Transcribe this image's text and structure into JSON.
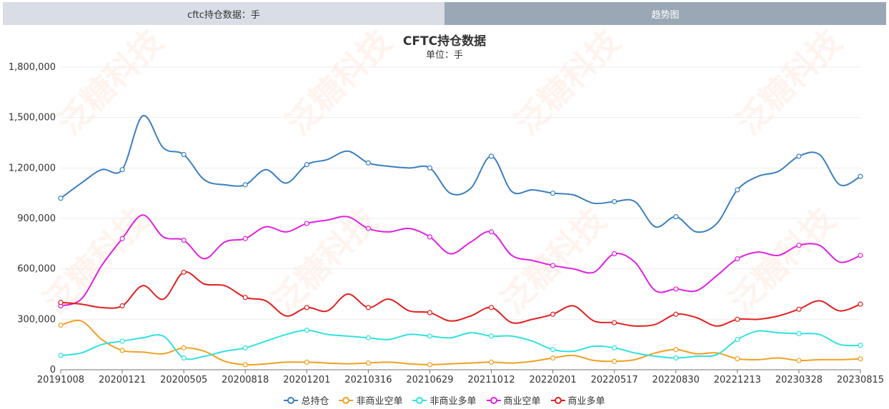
{
  "tabs": [
    {
      "label": "cftc持仓数据：手"
    },
    {
      "label": "趋势图"
    }
  ],
  "watermark_text": "泛糖科技",
  "chart_data": {
    "type": "line",
    "title": "CFTC持仓数据",
    "subtitle": "单位：手",
    "ylim": [
      0,
      1800000
    ],
    "yticks": [
      0,
      300000,
      600000,
      900000,
      1200000,
      1500000,
      1800000
    ],
    "ytick_labels": [
      "0",
      "300,000",
      "600,000",
      "900,000",
      "1,200,000",
      "1,500,000",
      "1,800,000"
    ],
    "xtick_labels": [
      "20191008",
      "20200121",
      "20200505",
      "20200818",
      "20201201",
      "20210316",
      "20210629",
      "20211012",
      "20220201",
      "20220517",
      "20220830",
      "20221213",
      "20230328",
      "20230815"
    ],
    "grid": true,
    "legend_position": "bottom",
    "x_count": 40,
    "series": [
      {
        "name": "总持仓",
        "color": "#3a7fbf",
        "values": [
          1020000,
          1110000,
          1190000,
          1190000,
          1510000,
          1320000,
          1280000,
          1130000,
          1100000,
          1100000,
          1190000,
          1110000,
          1220000,
          1250000,
          1300000,
          1230000,
          1210000,
          1200000,
          1200000,
          1050000,
          1080000,
          1270000,
          1060000,
          1070000,
          1050000,
          1040000,
          990000,
          1000000,
          1000000,
          850000,
          910000,
          820000,
          870000,
          1070000,
          1150000,
          1180000,
          1270000,
          1280000,
          1100000,
          1150000
        ]
      },
      {
        "name": "非商业空单",
        "color": "#f0a020",
        "values": [
          265000,
          290000,
          180000,
          115000,
          105000,
          95000,
          130000,
          110000,
          50000,
          30000,
          35000,
          45000,
          45000,
          40000,
          35000,
          40000,
          45000,
          35000,
          30000,
          35000,
          40000,
          45000,
          40000,
          50000,
          70000,
          85000,
          55000,
          50000,
          60000,
          100000,
          120000,
          95000,
          100000,
          65000,
          60000,
          70000,
          55000,
          60000,
          60000,
          65000
        ]
      },
      {
        "name": "非商业多单",
        "color": "#30e0e0",
        "values": [
          85000,
          100000,
          150000,
          170000,
          190000,
          200000,
          70000,
          80000,
          110000,
          130000,
          170000,
          210000,
          235000,
          210000,
          200000,
          190000,
          180000,
          210000,
          200000,
          190000,
          220000,
          200000,
          200000,
          170000,
          120000,
          110000,
          140000,
          130000,
          100000,
          80000,
          70000,
          80000,
          90000,
          180000,
          230000,
          220000,
          215000,
          210000,
          150000,
          145000
        ]
      },
      {
        "name": "商业空单",
        "color": "#e020e0",
        "values": [
          380000,
          420000,
          620000,
          780000,
          920000,
          790000,
          770000,
          660000,
          760000,
          780000,
          850000,
          820000,
          870000,
          890000,
          910000,
          840000,
          820000,
          840000,
          790000,
          690000,
          760000,
          820000,
          680000,
          650000,
          620000,
          600000,
          580000,
          690000,
          640000,
          470000,
          480000,
          470000,
          560000,
          660000,
          700000,
          680000,
          740000,
          740000,
          640000,
          680000
        ]
      },
      {
        "name": "商业多单",
        "color": "#e02020",
        "values": [
          400000,
          390000,
          370000,
          380000,
          500000,
          420000,
          580000,
          510000,
          500000,
          430000,
          410000,
          320000,
          370000,
          350000,
          450000,
          370000,
          420000,
          350000,
          340000,
          290000,
          320000,
          370000,
          280000,
          300000,
          330000,
          380000,
          290000,
          280000,
          260000,
          270000,
          330000,
          310000,
          260000,
          300000,
          300000,
          320000,
          360000,
          410000,
          350000,
          390000
        ]
      }
    ]
  }
}
